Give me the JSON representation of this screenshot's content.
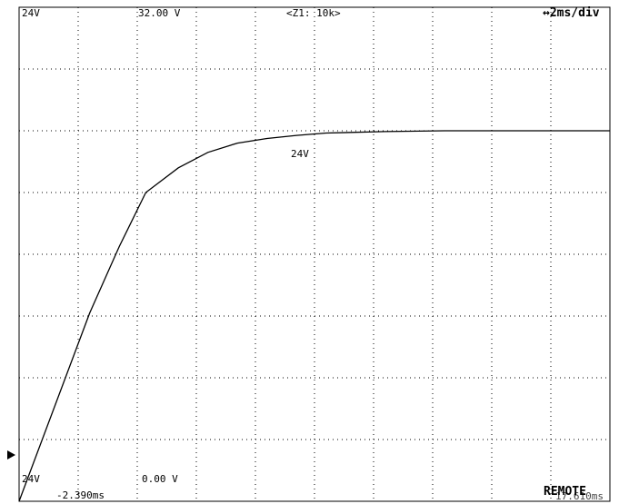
{
  "top_left_scale": "24V",
  "top_voltage": "32.00 V",
  "zoom_label": "<Z1: 10k>",
  "timebase": "↔2ms/div",
  "trace_label": "24V",
  "bottom_left_scale": "24V",
  "bottom_voltage": "0.00 V",
  "start_time": "-2.390ms",
  "end_time": "17.610ms",
  "status": "REMOTE",
  "chart_data": {
    "type": "line",
    "title": "",
    "xlabel": "",
    "ylabel": "",
    "xlim": [
      -2.39,
      17.61
    ],
    "ylim": [
      0,
      32
    ],
    "grid": true,
    "series": [
      {
        "name": "",
        "x": [
          -2.39,
          0.0,
          1.0,
          1.9,
          3.0,
          4.0,
          5.0,
          6.0,
          7.0,
          8.0,
          10.0,
          12.0,
          15.0,
          17.61
        ],
        "y": [
          0,
          12.2,
          16.5,
          20.0,
          21.6,
          22.6,
          23.2,
          23.5,
          23.7,
          23.85,
          23.95,
          24.0,
          24.0,
          24.0
        ]
      }
    ]
  }
}
